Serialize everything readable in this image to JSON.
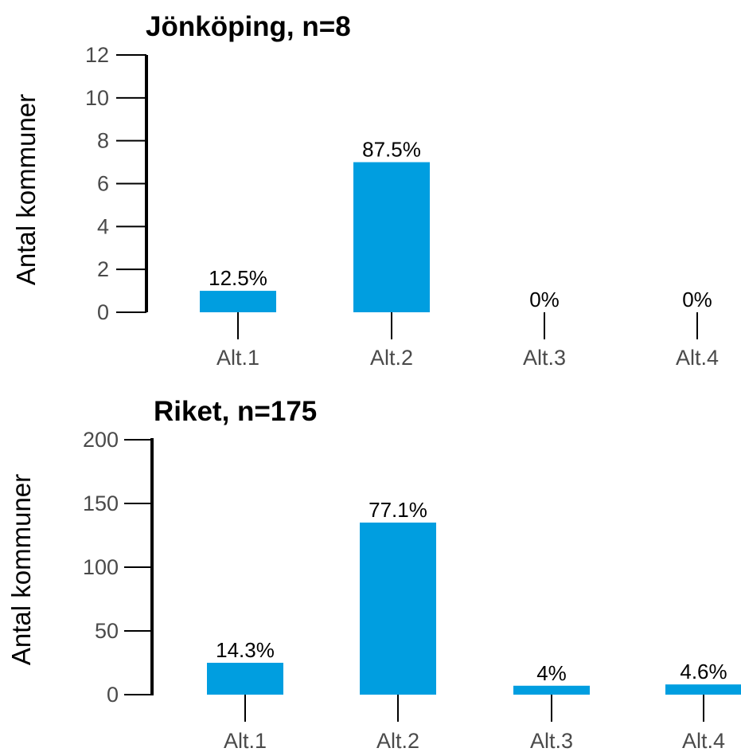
{
  "chart_data": [
    {
      "type": "bar",
      "title": "Jönköping, n=8",
      "ylabel": "Antal kommuner",
      "xlabel": "",
      "categories": [
        "Alt.1",
        "Alt.2",
        "Alt.3",
        "Alt.4"
      ],
      "values": [
        1,
        7,
        0,
        0
      ],
      "data_labels": [
        "12.5%",
        "87.5%",
        "0%",
        "0%"
      ],
      "ylim": [
        0,
        12
      ],
      "yticks": [
        "0",
        "2",
        "4",
        "6",
        "8",
        "10",
        "12"
      ],
      "grid": false,
      "bar_color": "#009ee0"
    },
    {
      "type": "bar",
      "title": "Riket, n=175",
      "ylabel": "Antal kommuner",
      "xlabel": "",
      "categories": [
        "Alt.1",
        "Alt.2",
        "Alt.3",
        "Alt.4"
      ],
      "values": [
        25,
        135,
        7,
        8
      ],
      "data_labels": [
        "14.3%",
        "77.1%",
        "4%",
        "4.6%"
      ],
      "ylim": [
        0,
        200
      ],
      "yticks": [
        "0",
        "50",
        "100",
        "150",
        "200"
      ],
      "grid": false,
      "bar_color": "#009ee0"
    }
  ]
}
